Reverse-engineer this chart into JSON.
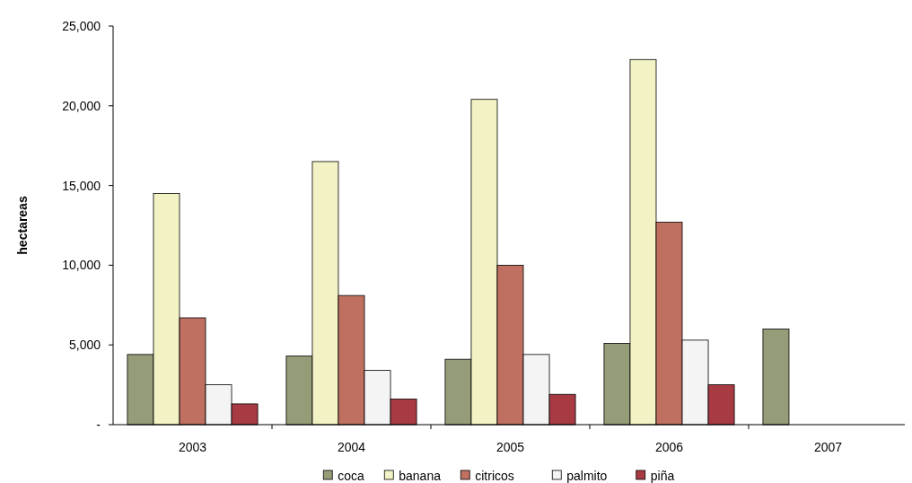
{
  "chart_data": {
    "type": "bar",
    "ylabel": "hectareas",
    "categories": [
      "2003",
      "2004",
      "2005",
      "2006",
      "2007"
    ],
    "series": [
      {
        "name": "coca",
        "color": "#959c78",
        "values": [
          4400,
          4300,
          4100,
          5100,
          6000
        ]
      },
      {
        "name": "banana",
        "color": "#f2f2c4",
        "values": [
          14500,
          16500,
          20400,
          22900,
          null
        ]
      },
      {
        "name": "citricos",
        "color": "#c07060",
        "values": [
          6700,
          8100,
          10000,
          12700,
          null
        ]
      },
      {
        "name": "palmito",
        "color": "#f4f4f4",
        "values": [
          2500,
          3400,
          4400,
          5300,
          null
        ]
      },
      {
        "name": "piña",
        "color": "#a83a44",
        "values": [
          1300,
          1600,
          1900,
          2500,
          null
        ]
      }
    ],
    "ylim": [
      0,
      25000
    ],
    "yticks": [
      {
        "value": 0,
        "label": "-"
      },
      {
        "value": 5000,
        "label": "5,000"
      },
      {
        "value": 10000,
        "label": "10,000"
      },
      {
        "value": 15000,
        "label": "15,000"
      },
      {
        "value": 20000,
        "label": "20,000"
      },
      {
        "value": 25000,
        "label": "25,000"
      }
    ],
    "grid": false,
    "legend": "bottom"
  }
}
